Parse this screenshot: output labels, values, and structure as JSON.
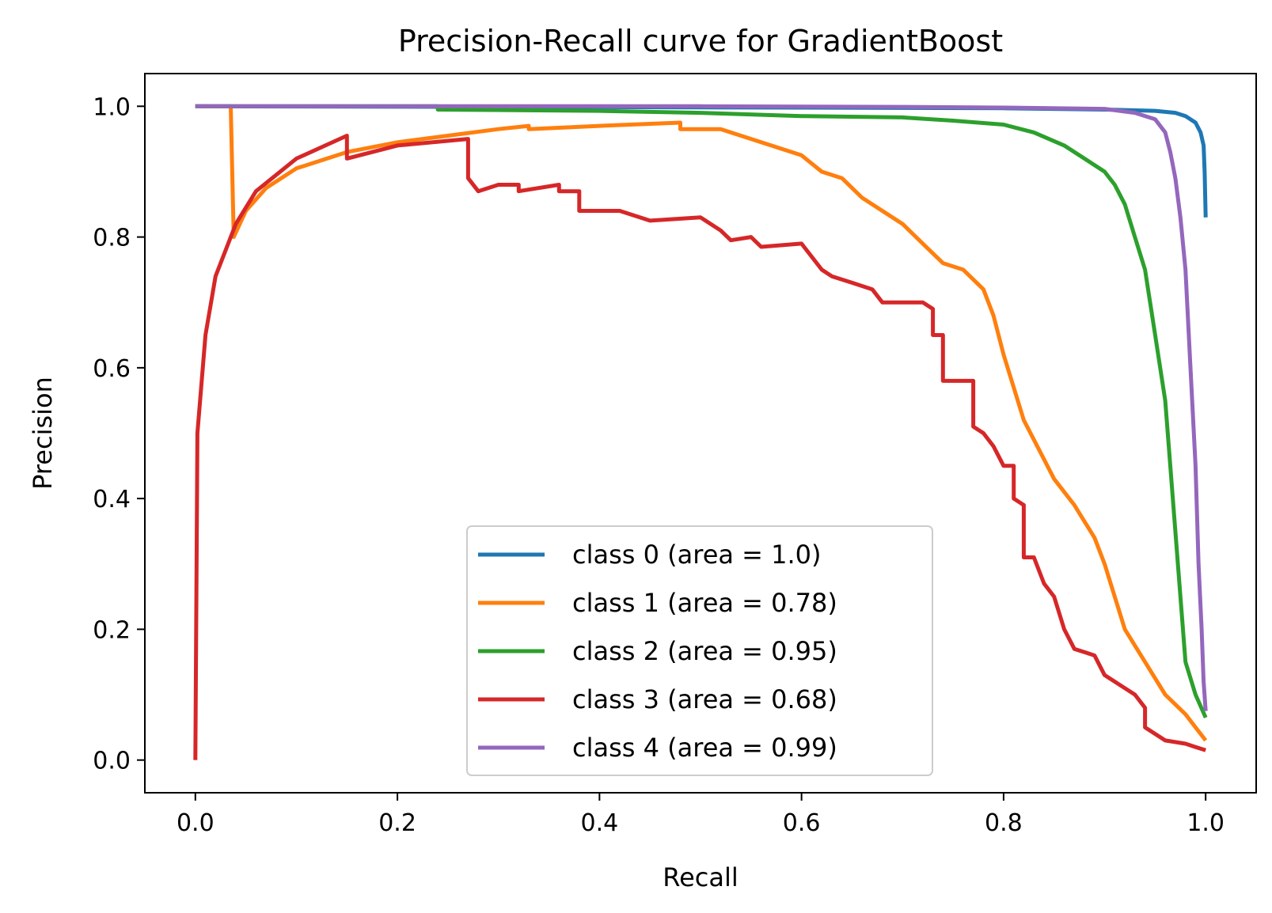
{
  "chart_data": {
    "type": "line",
    "title": "Precision-Recall curve for GradientBoost",
    "xlabel": "Recall",
    "ylabel": "Precision",
    "xlim": [
      -0.05,
      1.05
    ],
    "ylim": [
      -0.05,
      1.05
    ],
    "xticks": [
      "0.0",
      "0.2",
      "0.4",
      "0.6",
      "0.8",
      "1.0"
    ],
    "yticks": [
      "0.0",
      "0.2",
      "0.4",
      "0.6",
      "0.8",
      "1.0"
    ],
    "grid": false,
    "legend_position": "lower center",
    "series": [
      {
        "name": "class 0 (area = 1.0)",
        "color": "#1f77b4",
        "points": [
          [
            0,
            1.0
          ],
          [
            0.3,
            0.999
          ],
          [
            0.6,
            0.998
          ],
          [
            0.8,
            0.997
          ],
          [
            0.9,
            0.995
          ],
          [
            0.95,
            0.993
          ],
          [
            0.97,
            0.99
          ],
          [
            0.98,
            0.985
          ],
          [
            0.99,
            0.975
          ],
          [
            0.995,
            0.96
          ],
          [
            0.998,
            0.94
          ],
          [
            0.999,
            0.9
          ],
          [
            1.0,
            0.83
          ]
        ]
      },
      {
        "name": "class 1 (area = 0.78)",
        "color": "#ff7f0e",
        "points": [
          [
            0,
            1.0
          ],
          [
            0.01,
            1.0
          ],
          [
            0.02,
            1.0
          ],
          [
            0.035,
            1.0
          ],
          [
            0.038,
            0.8
          ],
          [
            0.05,
            0.84
          ],
          [
            0.07,
            0.875
          ],
          [
            0.1,
            0.905
          ],
          [
            0.15,
            0.93
          ],
          [
            0.2,
            0.945
          ],
          [
            0.25,
            0.955
          ],
          [
            0.3,
            0.965
          ],
          [
            0.33,
            0.97
          ],
          [
            0.33,
            0.965
          ],
          [
            0.4,
            0.97
          ],
          [
            0.48,
            0.975
          ],
          [
            0.48,
            0.965
          ],
          [
            0.52,
            0.965
          ],
          [
            0.55,
            0.95
          ],
          [
            0.58,
            0.935
          ],
          [
            0.6,
            0.925
          ],
          [
            0.62,
            0.9
          ],
          [
            0.64,
            0.89
          ],
          [
            0.66,
            0.86
          ],
          [
            0.68,
            0.84
          ],
          [
            0.7,
            0.82
          ],
          [
            0.72,
            0.79
          ],
          [
            0.74,
            0.76
          ],
          [
            0.76,
            0.75
          ],
          [
            0.78,
            0.72
          ],
          [
            0.79,
            0.68
          ],
          [
            0.8,
            0.62
          ],
          [
            0.81,
            0.57
          ],
          [
            0.82,
            0.52
          ],
          [
            0.83,
            0.49
          ],
          [
            0.84,
            0.46
          ],
          [
            0.85,
            0.43
          ],
          [
            0.87,
            0.39
          ],
          [
            0.89,
            0.34
          ],
          [
            0.9,
            0.3
          ],
          [
            0.91,
            0.25
          ],
          [
            0.92,
            0.2
          ],
          [
            0.94,
            0.15
          ],
          [
            0.96,
            0.1
          ],
          [
            0.98,
            0.07
          ],
          [
            0.99,
            0.05
          ],
          [
            1.0,
            0.03
          ]
        ]
      },
      {
        "name": "class 2 (area = 0.95)",
        "color": "#2ca02c",
        "points": [
          [
            0,
            1.0
          ],
          [
            0.24,
            1.0
          ],
          [
            0.24,
            0.995
          ],
          [
            0.4,
            0.993
          ],
          [
            0.5,
            0.99
          ],
          [
            0.6,
            0.985
          ],
          [
            0.7,
            0.983
          ],
          [
            0.75,
            0.978
          ],
          [
            0.8,
            0.972
          ],
          [
            0.83,
            0.96
          ],
          [
            0.86,
            0.94
          ],
          [
            0.88,
            0.92
          ],
          [
            0.9,
            0.9
          ],
          [
            0.91,
            0.88
          ],
          [
            0.92,
            0.85
          ],
          [
            0.93,
            0.8
          ],
          [
            0.94,
            0.75
          ],
          [
            0.95,
            0.65
          ],
          [
            0.96,
            0.55
          ],
          [
            0.965,
            0.45
          ],
          [
            0.97,
            0.35
          ],
          [
            0.975,
            0.25
          ],
          [
            0.98,
            0.15
          ],
          [
            0.99,
            0.1
          ],
          [
            1.0,
            0.065
          ]
        ]
      },
      {
        "name": "class 3 (area = 0.68)",
        "color": "#d62728",
        "points": [
          [
            0,
            0.0
          ],
          [
            0.002,
            0.5
          ],
          [
            0.01,
            0.65
          ],
          [
            0.02,
            0.74
          ],
          [
            0.04,
            0.82
          ],
          [
            0.06,
            0.87
          ],
          [
            0.1,
            0.92
          ],
          [
            0.15,
            0.955
          ],
          [
            0.15,
            0.92
          ],
          [
            0.2,
            0.94
          ],
          [
            0.27,
            0.95
          ],
          [
            0.27,
            0.89
          ],
          [
            0.28,
            0.87
          ],
          [
            0.3,
            0.88
          ],
          [
            0.32,
            0.88
          ],
          [
            0.32,
            0.87
          ],
          [
            0.36,
            0.88
          ],
          [
            0.36,
            0.87
          ],
          [
            0.38,
            0.87
          ],
          [
            0.38,
            0.84
          ],
          [
            0.42,
            0.84
          ],
          [
            0.45,
            0.825
          ],
          [
            0.5,
            0.83
          ],
          [
            0.52,
            0.81
          ],
          [
            0.53,
            0.795
          ],
          [
            0.55,
            0.8
          ],
          [
            0.56,
            0.785
          ],
          [
            0.6,
            0.79
          ],
          [
            0.61,
            0.77
          ],
          [
            0.62,
            0.75
          ],
          [
            0.63,
            0.74
          ],
          [
            0.65,
            0.73
          ],
          [
            0.67,
            0.72
          ],
          [
            0.68,
            0.7
          ],
          [
            0.72,
            0.7
          ],
          [
            0.73,
            0.69
          ],
          [
            0.73,
            0.65
          ],
          [
            0.74,
            0.65
          ],
          [
            0.74,
            0.58
          ],
          [
            0.77,
            0.58
          ],
          [
            0.77,
            0.51
          ],
          [
            0.78,
            0.5
          ],
          [
            0.79,
            0.48
          ],
          [
            0.8,
            0.45
          ],
          [
            0.81,
            0.45
          ],
          [
            0.81,
            0.4
          ],
          [
            0.82,
            0.39
          ],
          [
            0.82,
            0.31
          ],
          [
            0.83,
            0.31
          ],
          [
            0.84,
            0.27
          ],
          [
            0.85,
            0.25
          ],
          [
            0.86,
            0.2
          ],
          [
            0.87,
            0.17
          ],
          [
            0.88,
            0.165
          ],
          [
            0.89,
            0.16
          ],
          [
            0.9,
            0.13
          ],
          [
            0.92,
            0.11
          ],
          [
            0.93,
            0.1
          ],
          [
            0.94,
            0.08
          ],
          [
            0.94,
            0.05
          ],
          [
            0.96,
            0.03
          ],
          [
            0.98,
            0.025
          ],
          [
            0.99,
            0.02
          ],
          [
            1.0,
            0.015
          ]
        ]
      },
      {
        "name": "class 4 (area = 0.99)",
        "color": "#9467bd",
        "points": [
          [
            0,
            1.0
          ],
          [
            0.5,
            1.0
          ],
          [
            0.7,
            0.999
          ],
          [
            0.8,
            0.998
          ],
          [
            0.9,
            0.996
          ],
          [
            0.93,
            0.99
          ],
          [
            0.95,
            0.98
          ],
          [
            0.96,
            0.96
          ],
          [
            0.965,
            0.93
          ],
          [
            0.97,
            0.89
          ],
          [
            0.975,
            0.83
          ],
          [
            0.98,
            0.75
          ],
          [
            0.985,
            0.6
          ],
          [
            0.99,
            0.45
          ],
          [
            0.993,
            0.3
          ],
          [
            0.996,
            0.2
          ],
          [
            0.998,
            0.12
          ],
          [
            1.0,
            0.075
          ]
        ]
      }
    ]
  }
}
